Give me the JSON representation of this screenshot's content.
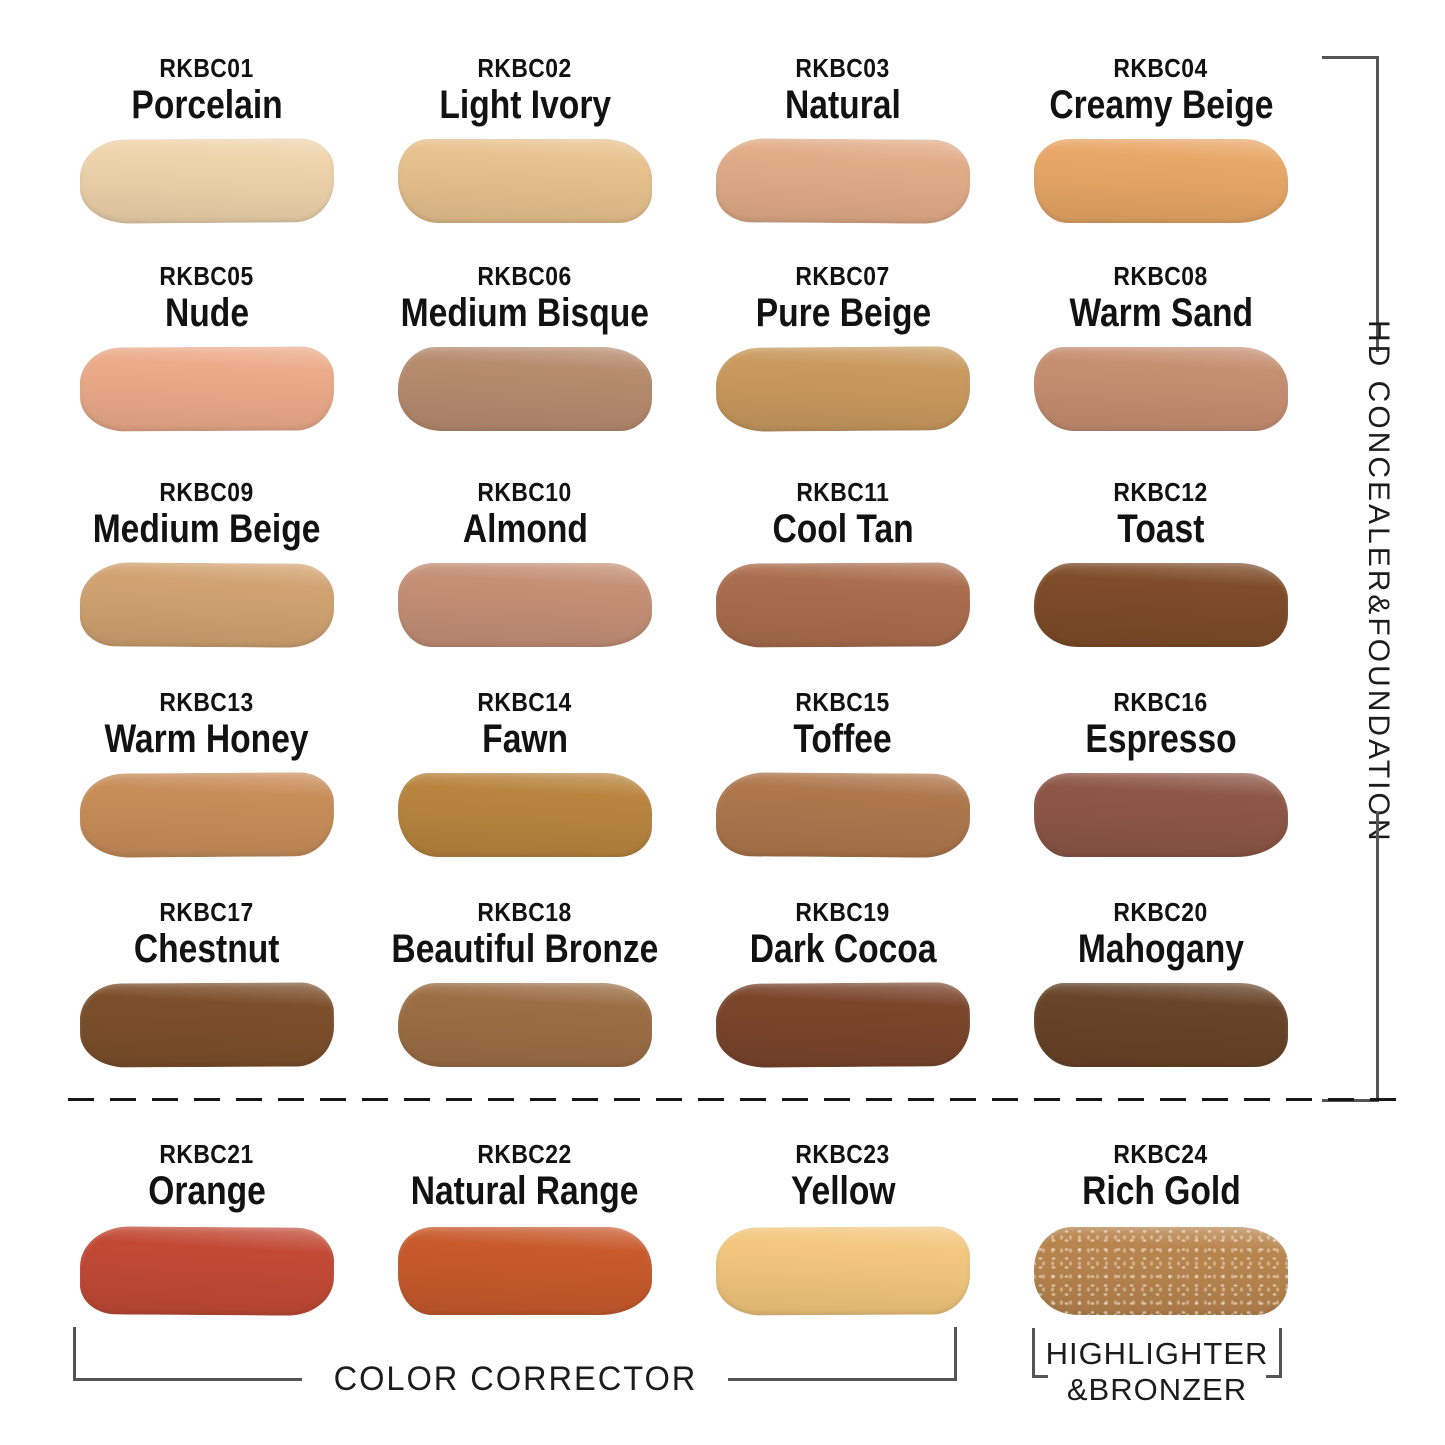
{
  "sections": {
    "right_label": "HD CONCEALER&FOUNDATION",
    "bottom_left_label": "COLOR CORRECTOR",
    "bottom_right_label_line1": "HIGHLIGHTER",
    "bottom_right_label_line2": "&BRONZER"
  },
  "shades": [
    {
      "code": "RKBC01",
      "name": "Porcelain",
      "color": "#efd3ab"
    },
    {
      "code": "RKBC02",
      "name": "Light Ivory",
      "color": "#e8c28e"
    },
    {
      "code": "RKBC03",
      "name": "Natural",
      "color": "#e1ac88"
    },
    {
      "code": "RKBC04",
      "name": "Creamy Beige",
      "color": "#e8a766"
    },
    {
      "code": "RKBC05",
      "name": "Nude",
      "color": "#ecab8a"
    },
    {
      "code": "RKBC06",
      "name": "Medium Bisque",
      "color": "#b78c6f"
    },
    {
      "code": "RKBC07",
      "name": "Pure Beige",
      "color": "#c99a5e"
    },
    {
      "code": "RKBC08",
      "name": "Warm Sand",
      "color": "#c68f71"
    },
    {
      "code": "RKBC09",
      "name": "Medium Beige",
      "color": "#d1a371"
    },
    {
      "code": "RKBC10",
      "name": "Almond",
      "color": "#c49076"
    },
    {
      "code": "RKBC11",
      "name": "Cool Tan",
      "color": "#aa6d4d"
    },
    {
      "code": "RKBC12",
      "name": "Toast",
      "color": "#7e4c28"
    },
    {
      "code": "RKBC13",
      "name": "Warm Honey",
      "color": "#c88e59"
    },
    {
      "code": "RKBC14",
      "name": "Fawn",
      "color": "#b8853f"
    },
    {
      "code": "RKBC15",
      "name": "Toffee",
      "color": "#ae774c"
    },
    {
      "code": "RKBC16",
      "name": "Espresso",
      "color": "#8d5746"
    },
    {
      "code": "RKBC17",
      "name": "Chestnut",
      "color": "#7c4f2b"
    },
    {
      "code": "RKBC18",
      "name": "Beautiful Bronze",
      "color": "#9c6e45"
    },
    {
      "code": "RKBC19",
      "name": "Dark Cocoa",
      "color": "#7a452b"
    },
    {
      "code": "RKBC20",
      "name": "Mahogany",
      "color": "#684428"
    },
    {
      "code": "RKBC21",
      "name": "Orange",
      "color": "#c24a35"
    },
    {
      "code": "RKBC22",
      "name": "Natural Range",
      "color": "#c85a2c"
    },
    {
      "code": "RKBC23",
      "name": "Yellow",
      "color": "#f3c77d"
    },
    {
      "code": "RKBC24",
      "name": "Rich Gold",
      "color": "#b8854e",
      "finish": "shimmer"
    }
  ]
}
